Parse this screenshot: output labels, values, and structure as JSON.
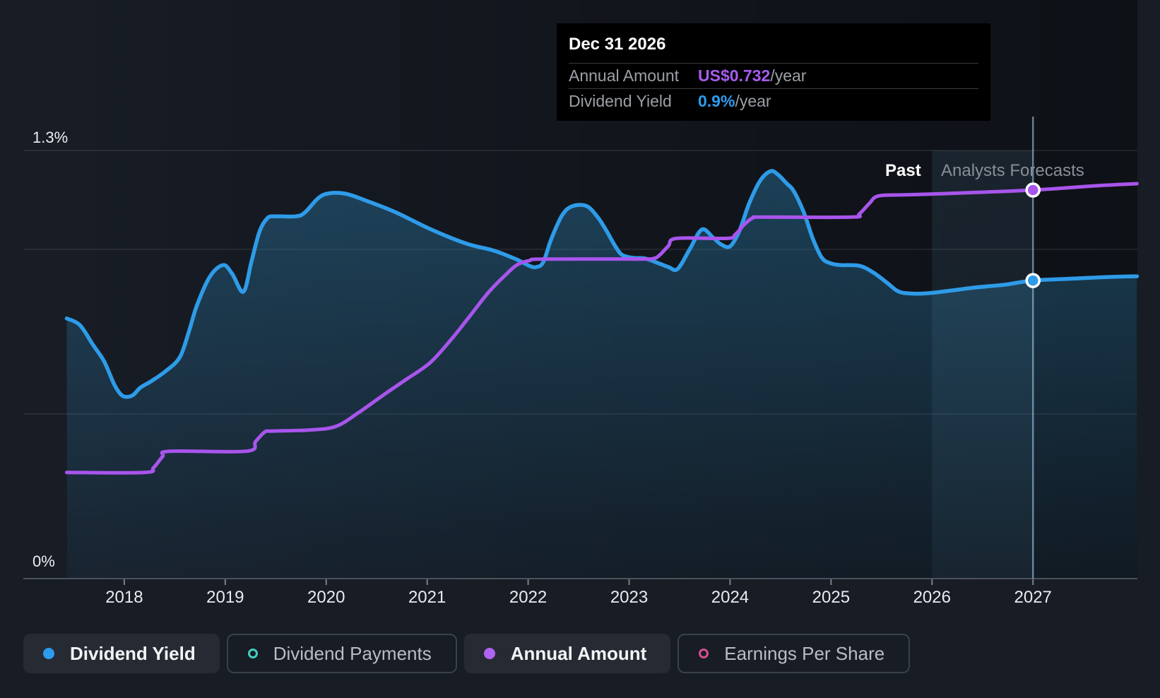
{
  "tooltip": {
    "date": "Dec 31 2026",
    "rows": [
      {
        "label": "Annual Amount",
        "value": "US$0.732",
        "suffix": "/year",
        "color": "#A85CF0"
      },
      {
        "label": "Dividend Yield",
        "value": "0.9%",
        "suffix": "/year",
        "color": "#2D9CF0"
      }
    ]
  },
  "annotations": {
    "past": "Past",
    "forecast": "Analysts Forecasts"
  },
  "axis_labels": {
    "y_top": "1.3%",
    "y_bottom": "0%"
  },
  "legend": {
    "items": [
      {
        "label": "Dividend Yield",
        "style": "filled",
        "color": "#2D9CF0"
      },
      {
        "label": "Dividend Payments",
        "style": "outline",
        "color": "#45CFC0"
      },
      {
        "label": "Annual Amount",
        "style": "filled",
        "color": "#B163F2"
      },
      {
        "label": "Earnings Per Share",
        "style": "outline",
        "color": "#D6508E"
      }
    ]
  },
  "colors": {
    "yield_line": "#2E9BE8",
    "amount_line": "#A855EC",
    "area_top": "rgba(43,125,171,0.42)",
    "area_bottom": "rgba(43,125,171,0.08)",
    "gridline": "rgba(255,255,255,0.10)",
    "axis_line": "#4A515A",
    "tick": "#7A828A",
    "forecast_band": "rgba(120,190,235,0.085)",
    "marker_line": "rgba(160,200,228,0.60)",
    "dot_ring": "#FFFFFF"
  },
  "chart_data": {
    "type": "line",
    "title": "Dividend history and forecast",
    "x_range": [
      2017.434,
      2028.034
    ],
    "x_ticks": [
      2018,
      2019,
      2020,
      2021,
      2022,
      2023,
      2024,
      2025,
      2026,
      2027
    ],
    "yield_axis": {
      "range": [
        0,
        1.3
      ],
      "unit": "%",
      "gridlines": [
        1.3,
        1.0,
        0.5,
        0
      ]
    },
    "amount_axis": {
      "unit": "US$/year"
    },
    "forecast_band": {
      "from": 2026.0,
      "to": 2027.0
    },
    "marker": {
      "x": 2027.0,
      "date": "Dec 31 2026",
      "amount": 0.732,
      "yield": 0.905
    },
    "legend_position": "bottom",
    "series": [
      {
        "name": "Dividend Yield",
        "axis": "yield",
        "unit": "%",
        "points": [
          [
            2017.43,
            0.79
          ],
          [
            2017.56,
            0.77
          ],
          [
            2017.69,
            0.71
          ],
          [
            2017.8,
            0.66
          ],
          [
            2017.9,
            0.59
          ],
          [
            2017.97,
            0.558
          ],
          [
            2018.03,
            0.552
          ],
          [
            2018.09,
            0.558
          ],
          [
            2018.16,
            0.58
          ],
          [
            2018.27,
            0.6
          ],
          [
            2018.41,
            0.63
          ],
          [
            2018.55,
            0.672
          ],
          [
            2018.64,
            0.75
          ],
          [
            2018.72,
            0.83
          ],
          [
            2018.85,
            0.918
          ],
          [
            2018.98,
            0.952
          ],
          [
            2019.07,
            0.925
          ],
          [
            2019.18,
            0.871
          ],
          [
            2019.26,
            0.963
          ],
          [
            2019.34,
            1.054
          ],
          [
            2019.42,
            1.095
          ],
          [
            2019.5,
            1.1
          ],
          [
            2019.7,
            1.1
          ],
          [
            2019.79,
            1.112
          ],
          [
            2019.92,
            1.155
          ],
          [
            2020.03,
            1.17
          ],
          [
            2020.2,
            1.168
          ],
          [
            2020.41,
            1.146
          ],
          [
            2020.69,
            1.112
          ],
          [
            2021.04,
            1.06
          ],
          [
            2021.39,
            1.017
          ],
          [
            2021.66,
            0.996
          ],
          [
            2021.88,
            0.97
          ],
          [
            2022.01,
            0.95
          ],
          [
            2022.08,
            0.946
          ],
          [
            2022.15,
            0.961
          ],
          [
            2022.23,
            1.032
          ],
          [
            2022.34,
            1.105
          ],
          [
            2022.44,
            1.131
          ],
          [
            2022.58,
            1.131
          ],
          [
            2022.69,
            1.097
          ],
          [
            2022.78,
            1.054
          ],
          [
            2022.86,
            1.011
          ],
          [
            2022.93,
            0.983
          ],
          [
            2023.04,
            0.974
          ],
          [
            2023.16,
            0.972
          ],
          [
            2023.28,
            0.959
          ],
          [
            2023.39,
            0.946
          ],
          [
            2023.48,
            0.94
          ],
          [
            2023.6,
            1.0
          ],
          [
            2023.72,
            1.06
          ],
          [
            2023.83,
            1.036
          ],
          [
            2023.91,
            1.015
          ],
          [
            2024.0,
            1.009
          ],
          [
            2024.09,
            1.054
          ],
          [
            2024.19,
            1.14
          ],
          [
            2024.3,
            1.209
          ],
          [
            2024.4,
            1.237
          ],
          [
            2024.47,
            1.228
          ],
          [
            2024.56,
            1.2
          ],
          [
            2024.63,
            1.177
          ],
          [
            2024.73,
            1.112
          ],
          [
            2024.82,
            1.032
          ],
          [
            2024.91,
            0.974
          ],
          [
            2025.0,
            0.957
          ],
          [
            2025.1,
            0.952
          ],
          [
            2025.28,
            0.95
          ],
          [
            2025.42,
            0.929
          ],
          [
            2025.56,
            0.897
          ],
          [
            2025.66,
            0.873
          ],
          [
            2025.77,
            0.866
          ],
          [
            2025.94,
            0.866
          ],
          [
            2026.15,
            0.873
          ],
          [
            2026.43,
            0.884
          ],
          [
            2026.71,
            0.892
          ],
          [
            2027.0,
            0.905
          ],
          [
            2027.41,
            0.911
          ],
          [
            2027.76,
            0.916
          ],
          [
            2028.03,
            0.918
          ]
        ]
      },
      {
        "name": "Annual Amount",
        "axis": "amount",
        "unit": "US$",
        "points": [
          [
            2017.43,
            0.2
          ],
          [
            2018.2,
            0.2
          ],
          [
            2018.29,
            0.209
          ],
          [
            2018.38,
            0.23
          ],
          [
            2018.45,
            0.24
          ],
          [
            2019.21,
            0.24
          ],
          [
            2019.3,
            0.258
          ],
          [
            2019.39,
            0.276
          ],
          [
            2019.47,
            0.278
          ],
          [
            2019.84,
            0.28
          ],
          [
            2020.1,
            0.287
          ],
          [
            2020.33,
            0.314
          ],
          [
            2020.56,
            0.345
          ],
          [
            2020.79,
            0.375
          ],
          [
            2021.03,
            0.407
          ],
          [
            2021.24,
            0.451
          ],
          [
            2021.42,
            0.494
          ],
          [
            2021.61,
            0.54
          ],
          [
            2021.77,
            0.571
          ],
          [
            2021.89,
            0.591
          ],
          [
            2022.01,
            0.599
          ],
          [
            2022.15,
            0.602
          ],
          [
            2023.1,
            0.602
          ],
          [
            2023.24,
            0.603
          ],
          [
            2023.3,
            0.609
          ],
          [
            2023.39,
            0.627
          ],
          [
            2023.47,
            0.641
          ],
          [
            2023.97,
            0.641
          ],
          [
            2024.05,
            0.648
          ],
          [
            2024.14,
            0.667
          ],
          [
            2024.23,
            0.68
          ],
          [
            2024.33,
            0.681
          ],
          [
            2025.2,
            0.681
          ],
          [
            2025.28,
            0.687
          ],
          [
            2025.38,
            0.707
          ],
          [
            2025.47,
            0.721
          ],
          [
            2025.73,
            0.723
          ],
          [
            2026.08,
            0.725
          ],
          [
            2027.0,
            0.732
          ],
          [
            2027.62,
            0.74
          ],
          [
            2028.03,
            0.744
          ]
        ]
      }
    ]
  }
}
